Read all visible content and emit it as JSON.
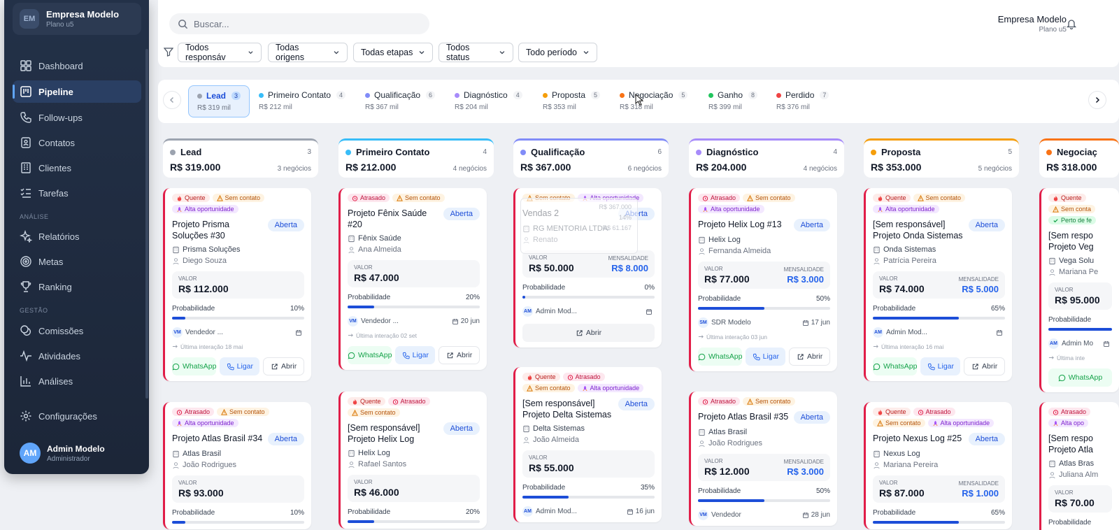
{
  "sidebar": {
    "org": {
      "initials": "EM",
      "name": "Empresa Modelo",
      "plan": "Plano u5"
    },
    "items": [
      {
        "label": "Dashboard",
        "icon": "grid-icon"
      },
      {
        "label": "Pipeline",
        "icon": "kanban-icon",
        "active": true
      },
      {
        "label": "Follow-ups",
        "icon": "phone-icon"
      },
      {
        "label": "Contatos",
        "icon": "contacts-icon"
      },
      {
        "label": "Clientes",
        "icon": "building-icon"
      },
      {
        "label": "Tarefas",
        "icon": "checklist-icon"
      },
      {
        "label": "Relatórios",
        "icon": "sparkle-icon"
      },
      {
        "label": "Metas",
        "icon": "target-icon"
      },
      {
        "label": "Ranking",
        "icon": "trophy-icon"
      },
      {
        "label": "Comissões",
        "icon": "coins-icon"
      },
      {
        "label": "Atividades",
        "icon": "activity-icon"
      },
      {
        "label": "Análises",
        "icon": "bar-chart-icon"
      },
      {
        "label": "Configurações",
        "icon": "gear-icon"
      }
    ],
    "sections": {
      "analise": "ANÁLISE",
      "gestao": "GESTÃO"
    },
    "user": {
      "initials": "AM",
      "name": "Admin Modelo",
      "role": "Administrador"
    }
  },
  "header": {
    "search_placeholder": "Buscar...",
    "company": "Empresa Modelo",
    "plan": "Plano u5"
  },
  "filters": [
    "Todos responsáv",
    "Todas origens",
    "Todas etapas",
    "Todos status",
    "Todo período"
  ],
  "stages": [
    {
      "label": "Lead",
      "count": "3",
      "total": "R$ 319 mil",
      "color": "#9ca3af"
    },
    {
      "label": "Primeiro Contato",
      "count": "4",
      "total": "R$ 212 mil",
      "color": "#38bdf8"
    },
    {
      "label": "Qualificação",
      "count": "6",
      "total": "R$ 367 mil",
      "color": "#818cf8"
    },
    {
      "label": "Diagnóstico",
      "count": "4",
      "total": "R$ 204 mil",
      "color": "#a78bfa"
    },
    {
      "label": "Proposta",
      "count": "5",
      "total": "R$ 353 mil",
      "color": "#f59e0b"
    },
    {
      "label": "Negociação",
      "count": "5",
      "total": "R$ 318 mil",
      "color": "#f97316"
    },
    {
      "label": "Ganho",
      "count": "8",
      "total": "R$ 399 mil",
      "color": "#22c55e"
    },
    {
      "label": "Perdido",
      "count": "7",
      "total": "R$ 376 mil",
      "color": "#ef4444"
    }
  ],
  "columns": [
    {
      "title": "Lead",
      "badge": "3",
      "value": "R$ 319.000",
      "n": "3 negócios",
      "color": "#9ca3af"
    },
    {
      "title": "Primeiro Contato",
      "badge": "4",
      "value": "R$ 212.000",
      "n": "4 negócios",
      "color": "#38bdf8"
    },
    {
      "title": "Qualificação",
      "badge": "6",
      "value": "R$ 367.000",
      "n": "6 negócios",
      "color": "#818cf8"
    },
    {
      "title": "Diagnóstico",
      "badge": "4",
      "value": "R$ 204.000",
      "n": "4 negócios",
      "color": "#a78bfa"
    },
    {
      "title": "Proposta",
      "badge": "5",
      "value": "R$ 353.000",
      "n": "5 negócios",
      "color": "#f59e0b"
    },
    {
      "title": "Negociaç",
      "badge": "",
      "value": "R$ 318.000",
      "n": "",
      "color": "#f97316"
    }
  ],
  "labels": {
    "valor": "VALOR",
    "mensalidade": "MENSALIDADE",
    "probabilidade": "Probabilidade",
    "whatsapp": "WhatsApp",
    "ligar": "Ligar",
    "abrir": "Abrir",
    "aberta": "Aberta"
  },
  "cards": [
    {
      "title": "Projeto Prisma Soluções #30",
      "tags": [
        [
          "Quente",
          "q"
        ],
        [
          "Sem contato",
          "s"
        ],
        [
          "Alta oportunidade",
          "o"
        ]
      ],
      "company": "Prisma Soluções",
      "person": "Diego Souza",
      "value": "R$ 112.000",
      "monthly": "",
      "prob": "10%",
      "owner_av": "VM",
      "owner": "Vendedor ...",
      "date": "",
      "last": "Última interação 18 mai",
      "actions": "full"
    },
    {
      "title": "Projeto Atlas Brasil #34",
      "tags": [
        [
          "Atrasado",
          "a"
        ],
        [
          "Sem contato",
          "s"
        ],
        [
          "Alta oportunidade",
          "o"
        ]
      ],
      "company": "Atlas Brasil",
      "person": "João Rodrigues",
      "value": "R$ 93.000",
      "monthly": "",
      "prob": "10%"
    },
    {
      "title": "Projeto Fênix Saúde #20",
      "tags": [
        [
          "Atrasado",
          "a"
        ],
        [
          "Sem contato",
          "s"
        ]
      ],
      "company": "Fênix Saúde",
      "person": "Ana Almeida",
      "value": "R$ 47.000",
      "monthly": "",
      "prob": "20%",
      "owner_av": "VM",
      "owner": "Vendedor ...",
      "date": "20 jun",
      "last": "Última interação 02 set",
      "actions": "full"
    },
    {
      "title": "[Sem responsável] Projeto Helix Log",
      "tags": [
        [
          "Quente",
          "q"
        ],
        [
          "Atrasado",
          "a"
        ],
        [
          "Sem contato",
          "s"
        ]
      ],
      "company": "Helix Log",
      "person": "Rafael Santos",
      "value": "R$ 46.000",
      "monthly": "",
      "prob": "20%"
    },
    {
      "title": "Vendas 2",
      "tags": [
        [
          "Sem contato",
          "s"
        ],
        [
          "Alta oportunidade",
          "o"
        ]
      ],
      "company": "RG MENTORIA LTDA",
      "person": "Renato",
      "value": "R$ 50.000",
      "monthly": "R$ 8.000",
      "prob": "0%",
      "owner_av": "AM",
      "owner": "Admin Mod...",
      "date": "",
      "last": "",
      "actions": "open"
    },
    {
      "title": "[Sem responsável] Projeto Delta Sistemas",
      "tags": [
        [
          "Quente",
          "q"
        ],
        [
          "Atrasado",
          "a"
        ],
        [
          "Sem contato",
          "s"
        ],
        [
          "Alta oportunidade",
          "o"
        ]
      ],
      "company": "Delta Sistemas",
      "person": "João Almeida",
      "value": "R$ 55.000",
      "monthly": "",
      "prob": "35%",
      "owner_av": "AM",
      "owner": "Admin Mod...",
      "date": "16 jun"
    },
    {
      "title": "Projeto Helix Log #13",
      "tags": [
        [
          "Atrasado",
          "a"
        ],
        [
          "Sem contato",
          "s"
        ],
        [
          "Alta oportunidade",
          "o"
        ]
      ],
      "company": "Helix Log",
      "person": "Fernanda Almeida",
      "value": "R$ 77.000",
      "monthly": "R$ 3.000",
      "prob": "50%",
      "owner_av": "SM",
      "owner": "SDR Modelo",
      "date": "17 jun",
      "last": "Última interação 03 jun",
      "actions": "full"
    },
    {
      "title": "Projeto Atlas Brasil #35",
      "tags": [
        [
          "Atrasado",
          "a"
        ],
        [
          "Sem contato",
          "s"
        ]
      ],
      "company": "Atlas Brasil",
      "person": "João Rodrigues",
      "value": "R$ 12.000",
      "monthly": "R$ 3.000",
      "prob": "50%",
      "owner_av": "VM",
      "owner": "Vendedor",
      "date": "28 jun"
    },
    {
      "title": "[Sem responsável] Projeto Onda Sistemas",
      "tags": [
        [
          "Quente",
          "q"
        ],
        [
          "Sem contato",
          "s"
        ],
        [
          "Alta oportunidade",
          "o"
        ]
      ],
      "company": "Onda Sistemas",
      "person": "Patrícia Pereira",
      "value": "R$ 74.000",
      "monthly": "R$ 5.000",
      "prob": "65%",
      "owner_av": "AM",
      "owner": "Admin Mod...",
      "date": "",
      "last": "Última interação 16 mai",
      "actions": "full"
    },
    {
      "title": "Projeto Nexus Log #25",
      "tags": [
        [
          "Quente",
          "q"
        ],
        [
          "Atrasado",
          "a"
        ],
        [
          "Sem contato",
          "s"
        ],
        [
          "Alta oportunidade",
          "o"
        ]
      ],
      "company": "Nexus Log",
      "person": "Mariana Pereira",
      "value": "R$ 87.000",
      "monthly": "R$ 1.000",
      "prob": "65%"
    },
    {
      "title": "[Sem respo Projeto Veg",
      "tags": [
        [
          "Quente",
          "q"
        ],
        [
          "Sem conta",
          "s"
        ],
        [
          "Perto de fe",
          "p"
        ]
      ],
      "company": "Vega Solu",
      "person": "Mariana Pe",
      "value": "R$ 95.000",
      "monthly": "",
      "prob": "",
      "owner_av": "AM",
      "owner": "Admin Mo",
      "date": "",
      "last": "Última inte",
      "actions": "wa"
    },
    {
      "title": "[Sem respo Projeto Atla",
      "tags": [
        [
          "Atrasado",
          "a"
        ],
        [
          "Alta opo",
          "o"
        ]
      ],
      "company": "Atlas Bras",
      "person": "Juliana Alm",
      "value": "R$ 70.00",
      "monthly": "",
      "prob": ""
    }
  ],
  "ghost": {
    "r1": "R$ 367.000",
    "r2": "14%",
    "r3": "R$ 61.167"
  }
}
